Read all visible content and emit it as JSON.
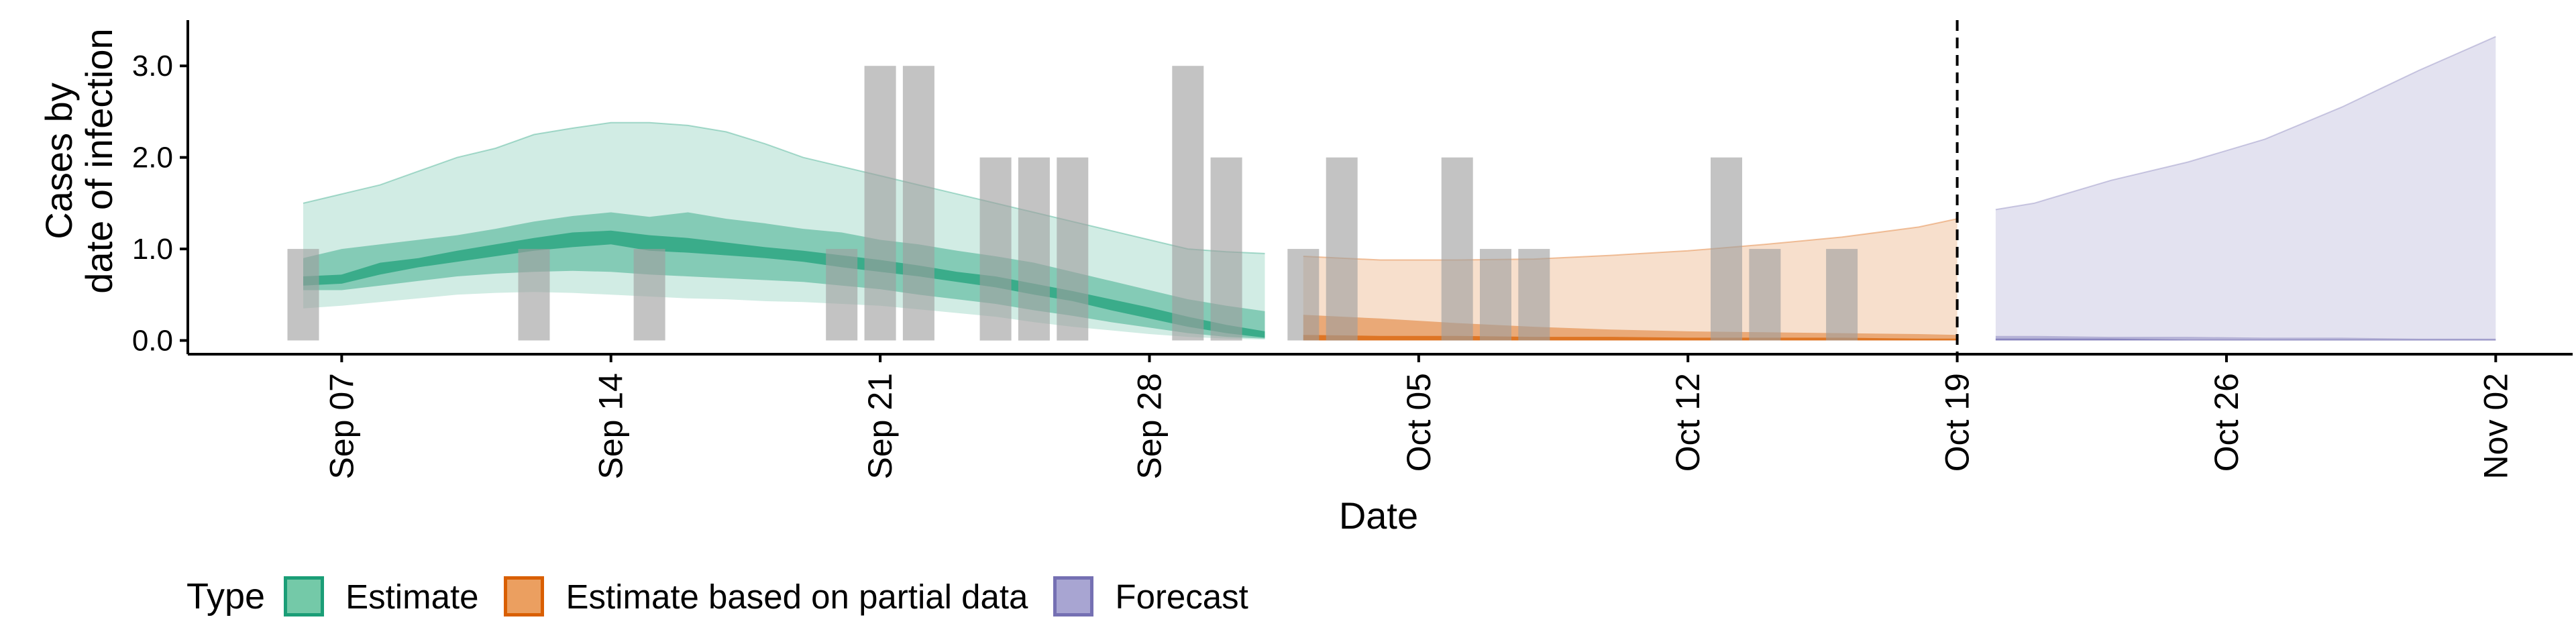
{
  "chart_data": {
    "type": "area",
    "title": "",
    "xlabel": "Date",
    "ylabel": [
      "Cases by",
      "date of infection"
    ],
    "xlim": [
      "2020-09-03",
      "2020-11-04"
    ],
    "ylim": [
      -0.15,
      3.5
    ],
    "yticks": [
      0,
      1,
      2,
      3
    ],
    "ytick_labels": [
      "0.0",
      "1.0",
      "2.0",
      "3.0"
    ],
    "xticks": [
      "2020-09-07",
      "2020-09-14",
      "2020-09-21",
      "2020-09-28",
      "2020-10-05",
      "2020-10-12",
      "2020-10-19",
      "2020-10-26",
      "2020-11-02"
    ],
    "xtick_labels": [
      "Sep 07",
      "Sep 14",
      "Sep 21",
      "Sep 28",
      "Oct 05",
      "Oct 12",
      "Oct 19",
      "Oct 26",
      "Nov 02"
    ],
    "grid": false,
    "forecast_start": "2020-10-19",
    "reported_cases": [
      {
        "date": "2020-09-06",
        "value": 1
      },
      {
        "date": "2020-09-12",
        "value": 1
      },
      {
        "date": "2020-09-15",
        "value": 1
      },
      {
        "date": "2020-09-20",
        "value": 1
      },
      {
        "date": "2020-09-21",
        "value": 3
      },
      {
        "date": "2020-09-22",
        "value": 3
      },
      {
        "date": "2020-09-24",
        "value": 2
      },
      {
        "date": "2020-09-25",
        "value": 2
      },
      {
        "date": "2020-09-26",
        "value": 2
      },
      {
        "date": "2020-09-29",
        "value": 3
      },
      {
        "date": "2020-09-30",
        "value": 2
      },
      {
        "date": "2020-10-02",
        "value": 1
      },
      {
        "date": "2020-10-03",
        "value": 2
      },
      {
        "date": "2020-10-06",
        "value": 2
      },
      {
        "date": "2020-10-07",
        "value": 1
      },
      {
        "date": "2020-10-08",
        "value": 1
      },
      {
        "date": "2020-10-13",
        "value": 2
      },
      {
        "date": "2020-10-14",
        "value": 1
      },
      {
        "date": "2020-10-16",
        "value": 1
      }
    ],
    "series": [
      {
        "name": "Estimate",
        "color": "#1b9e77",
        "bands": {
          "x": [
            "2020-09-06",
            "2020-09-07",
            "2020-09-08",
            "2020-09-09",
            "2020-09-10",
            "2020-09-11",
            "2020-09-12",
            "2020-09-13",
            "2020-09-14",
            "2020-09-15",
            "2020-09-16",
            "2020-09-17",
            "2020-09-18",
            "2020-09-19",
            "2020-09-20",
            "2020-09-21",
            "2020-09-22",
            "2020-09-23",
            "2020-09-24",
            "2020-09-25",
            "2020-09-26",
            "2020-09-27",
            "2020-09-28",
            "2020-09-29",
            "2020-09-30",
            "2020-10-01"
          ],
          "outer_upper": [
            1.5,
            1.6,
            1.7,
            1.85,
            2.0,
            2.1,
            2.25,
            2.32,
            2.38,
            2.38,
            2.35,
            2.28,
            2.15,
            2.0,
            1.9,
            1.8,
            1.7,
            1.6,
            1.5,
            1.4,
            1.3,
            1.2,
            1.1,
            1.0,
            0.97,
            0.95
          ],
          "outer_lower": [
            0.35,
            0.38,
            0.42,
            0.46,
            0.5,
            0.52,
            0.53,
            0.52,
            0.5,
            0.48,
            0.46,
            0.45,
            0.43,
            0.42,
            0.4,
            0.38,
            0.34,
            0.3,
            0.26,
            0.2,
            0.15,
            0.11,
            0.07,
            0.04,
            0.02,
            0.01
          ],
          "mid_upper": [
            0.9,
            1.0,
            1.05,
            1.1,
            1.15,
            1.22,
            1.3,
            1.36,
            1.4,
            1.35,
            1.4,
            1.33,
            1.28,
            1.22,
            1.18,
            1.1,
            1.05,
            0.98,
            0.92,
            0.85,
            0.75,
            0.65,
            0.55,
            0.45,
            0.38,
            0.32
          ],
          "mid_lower": [
            0.55,
            0.55,
            0.6,
            0.65,
            0.7,
            0.73,
            0.75,
            0.76,
            0.75,
            0.72,
            0.7,
            0.68,
            0.66,
            0.64,
            0.6,
            0.56,
            0.5,
            0.45,
            0.4,
            0.33,
            0.27,
            0.2,
            0.14,
            0.08,
            0.04,
            0.02
          ],
          "inner_upper": [
            0.7,
            0.72,
            0.85,
            0.9,
            0.98,
            1.05,
            1.12,
            1.18,
            1.2,
            1.15,
            1.12,
            1.07,
            1.02,
            0.98,
            0.93,
            0.88,
            0.82,
            0.75,
            0.7,
            0.62,
            0.54,
            0.45,
            0.36,
            0.26,
            0.17,
            0.1
          ],
          "inner_lower": [
            0.6,
            0.62,
            0.72,
            0.8,
            0.86,
            0.92,
            0.98,
            1.02,
            1.05,
            0.98,
            0.96,
            0.93,
            0.9,
            0.86,
            0.8,
            0.75,
            0.7,
            0.64,
            0.58,
            0.5,
            0.43,
            0.33,
            0.24,
            0.15,
            0.08,
            0.03
          ]
        }
      },
      {
        "name": "Estimate based on partial data",
        "color": "#d95f02",
        "bands": {
          "x": [
            "2020-10-02",
            "2020-10-04",
            "2020-10-06",
            "2020-10-08",
            "2020-10-10",
            "2020-10-12",
            "2020-10-14",
            "2020-10-16",
            "2020-10-18",
            "2020-10-19"
          ],
          "outer_upper": [
            0.92,
            0.88,
            0.88,
            0.89,
            0.93,
            0.98,
            1.05,
            1.13,
            1.24,
            1.33
          ],
          "outer_lower": [
            0.0,
            0.0,
            0.0,
            0.0,
            0.0,
            0.0,
            0.0,
            0.0,
            0.0,
            0.0
          ],
          "mid_upper": [
            0.28,
            0.24,
            0.19,
            0.15,
            0.12,
            0.1,
            0.09,
            0.08,
            0.07,
            0.06
          ],
          "mid_lower": [
            0.0,
            0.0,
            0.0,
            0.0,
            0.0,
            0.0,
            0.0,
            0.0,
            0.0,
            0.0
          ],
          "inner_upper": [
            0.06,
            0.05,
            0.05,
            0.04,
            0.04,
            0.03,
            0.03,
            0.03,
            0.02,
            0.02
          ],
          "inner_lower": [
            0.0,
            0.0,
            0.0,
            0.0,
            0.0,
            0.0,
            0.0,
            0.0,
            0.0,
            0.0
          ]
        }
      },
      {
        "name": "Forecast",
        "color": "#7570b3",
        "bands": {
          "x": [
            "2020-10-20",
            "2020-10-21",
            "2020-10-23",
            "2020-10-25",
            "2020-10-27",
            "2020-10-29",
            "2020-10-31",
            "2020-11-02"
          ],
          "outer_upper": [
            1.43,
            1.5,
            1.75,
            1.95,
            2.2,
            2.55,
            2.95,
            3.32
          ],
          "outer_lower": [
            0.0,
            0.0,
            0.0,
            0.0,
            0.0,
            0.0,
            0.0,
            0.0
          ],
          "mid_upper": [
            0.05,
            0.05,
            0.04,
            0.04,
            0.03,
            0.03,
            0.02,
            0.02
          ],
          "mid_lower": [
            0.0,
            0.0,
            0.0,
            0.0,
            0.0,
            0.0,
            0.0,
            0.0
          ],
          "inner_upper": [
            0.02,
            0.02,
            0.02,
            0.01,
            0.01,
            0.01,
            0.01,
            0.01
          ],
          "inner_lower": [
            0.0,
            0.0,
            0.0,
            0.0,
            0.0,
            0.0,
            0.0,
            0.0
          ]
        }
      }
    ],
    "legend": {
      "title": "Type",
      "position": "bottom",
      "entries": [
        {
          "label": "Estimate",
          "fill": "#74c9a8",
          "border": "#1b9e77"
        },
        {
          "label": "Estimate based on partial data",
          "fill": "#eb9f60",
          "border": "#d95f02"
        },
        {
          "label": "Forecast",
          "fill": "#a8a5d2",
          "border": "#7570b3"
        }
      ]
    }
  }
}
